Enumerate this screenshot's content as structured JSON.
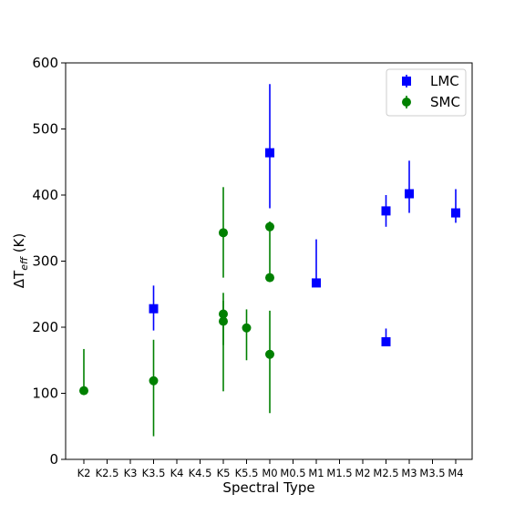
{
  "chart_data": {
    "type": "scatter",
    "xlabel": "Spectral Type",
    "ylabel_prefix": "ΔT",
    "ylabel_sub": "eff",
    "ylabel_suffix": " (K)",
    "ylim": [
      0,
      600
    ],
    "yticks": [
      0,
      100,
      200,
      300,
      400,
      500,
      600
    ],
    "categories": [
      "K2",
      "K2.5",
      "K3",
      "K3.5",
      "K4",
      "K4.5",
      "K5",
      "K5.5",
      "M0",
      "M0.5",
      "M1",
      "M1.5",
      "M2",
      "M2.5",
      "M3",
      "M3.5",
      "M4"
    ],
    "legend_position": "top-right",
    "series": [
      {
        "name": "LMC",
        "marker": "square",
        "color": "#0000ff",
        "points": [
          {
            "x": "K3.5",
            "y": 228,
            "err_low": 195,
            "err_high": 263
          },
          {
            "x": "M0",
            "y": 464,
            "err_low": 380,
            "err_high": 568
          },
          {
            "x": "M1",
            "y": 267,
            "err_low": 267,
            "err_high": 333
          },
          {
            "x": "M2.5",
            "y": 376,
            "err_low": 352,
            "err_high": 400
          },
          {
            "x": "M2.5",
            "y": 178,
            "err_low": 178,
            "err_high": 198
          },
          {
            "x": "M3",
            "y": 402,
            "err_low": 373,
            "err_high": 452
          },
          {
            "x": "M4",
            "y": 373,
            "err_low": 358,
            "err_high": 409
          }
        ]
      },
      {
        "name": "SMC",
        "marker": "circle",
        "color": "#008000",
        "points": [
          {
            "x": "K2",
            "y": 104,
            "err_low": 104,
            "err_high": 167
          },
          {
            "x": "K3.5",
            "y": 119,
            "err_low": 35,
            "err_high": 181
          },
          {
            "x": "K5",
            "y": 343,
            "err_low": 275,
            "err_high": 412
          },
          {
            "x": "K5",
            "y": 220,
            "err_low": 173,
            "err_high": 252
          },
          {
            "x": "K5",
            "y": 209,
            "err_low": 103,
            "err_high": 240
          },
          {
            "x": "K5.5",
            "y": 199,
            "err_low": 150,
            "err_high": 227
          },
          {
            "x": "M0",
            "y": 352,
            "err_low": 300,
            "err_high": 360
          },
          {
            "x": "M0",
            "y": 275,
            "err_low": 275,
            "err_high": 300
          },
          {
            "x": "M0",
            "y": 159,
            "err_low": 70,
            "err_high": 225
          }
        ]
      }
    ]
  }
}
